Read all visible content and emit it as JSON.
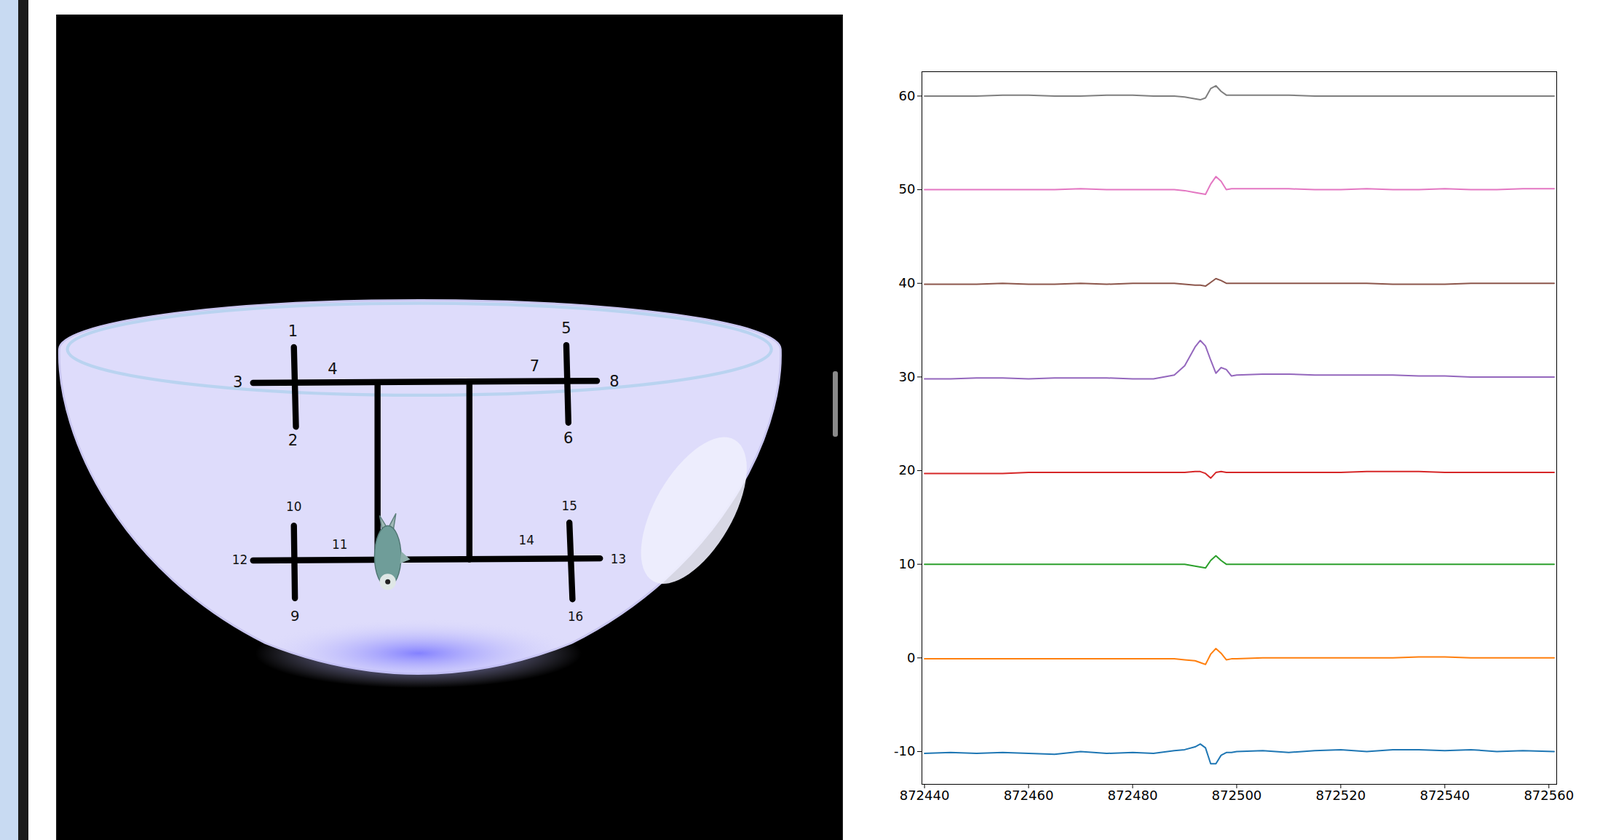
{
  "diagram": {
    "electrode_labels": [
      "1",
      "2",
      "3",
      "4",
      "5",
      "6",
      "7",
      "8",
      "9",
      "10",
      "11",
      "12",
      "13",
      "14",
      "15",
      "16"
    ]
  },
  "chart_data": {
    "type": "line",
    "grid": false,
    "x": [
      872440,
      872445,
      872450,
      872455,
      872460,
      872465,
      872470,
      872475,
      872480,
      872484,
      872488,
      872490,
      872492,
      872493,
      872494,
      872495,
      872496,
      872497,
      872498,
      872499,
      872500,
      872505,
      872510,
      872515,
      872520,
      872525,
      872530,
      872535,
      872540,
      872545,
      872550,
      872555,
      872561
    ],
    "xlim": [
      872439.5,
      872561.5
    ],
    "xticks": [
      872440,
      872460,
      872480,
      872500,
      872520,
      872540,
      872560
    ],
    "ylim": [
      -13.5,
      62.6
    ],
    "yticks": [
      -10,
      0,
      10,
      20,
      30,
      40,
      50,
      60
    ],
    "series": [
      {
        "color": "#1f77b4",
        "values": [
          -10.2,
          -10.1,
          -10.2,
          -10.1,
          -10.2,
          -10.3,
          -10.0,
          -10.2,
          -10.1,
          -10.2,
          -9.9,
          -9.8,
          -9.5,
          -9.2,
          -9.6,
          -11.3,
          -11.3,
          -10.4,
          -10.1,
          -10.1,
          -10.0,
          -9.9,
          -10.1,
          -9.9,
          -9.8,
          -10.0,
          -9.8,
          -9.8,
          -9.9,
          -9.8,
          -10.0,
          -9.9,
          -10.0
        ]
      },
      {
        "color": "#ff7f0e",
        "values": [
          -0.1,
          -0.1,
          -0.1,
          -0.1,
          -0.1,
          -0.1,
          -0.1,
          -0.1,
          -0.1,
          -0.1,
          -0.1,
          -0.2,
          -0.3,
          -0.5,
          -0.7,
          0.4,
          1.0,
          0.5,
          -0.2,
          -0.1,
          -0.1,
          0.0,
          0.0,
          0.0,
          0.0,
          0.0,
          0.0,
          0.1,
          0.1,
          0.0,
          0.0,
          0.0,
          0.0
        ]
      },
      {
        "color": "#2ca02c",
        "values": [
          10.0,
          10.0,
          10.0,
          10.0,
          10.0,
          10.0,
          10.0,
          10.0,
          10.0,
          10.0,
          10.0,
          10.0,
          9.8,
          9.7,
          9.6,
          10.4,
          10.9,
          10.4,
          10.0,
          10.0,
          10.0,
          10.0,
          10.0,
          10.0,
          10.0,
          10.0,
          10.0,
          10.0,
          10.0,
          10.0,
          10.0,
          10.0,
          10.0
        ]
      },
      {
        "color": "#d62728",
        "values": [
          19.7,
          19.7,
          19.7,
          19.7,
          19.8,
          19.8,
          19.8,
          19.8,
          19.8,
          19.8,
          19.8,
          19.8,
          19.9,
          19.9,
          19.7,
          19.2,
          19.8,
          19.9,
          19.8,
          19.8,
          19.8,
          19.8,
          19.8,
          19.8,
          19.8,
          19.9,
          19.9,
          19.9,
          19.8,
          19.8,
          19.8,
          19.8,
          19.8
        ]
      },
      {
        "color": "#9467bd",
        "values": [
          29.8,
          29.8,
          29.9,
          29.9,
          29.8,
          29.9,
          29.9,
          29.9,
          29.8,
          29.8,
          30.2,
          31.2,
          33.2,
          33.9,
          33.3,
          31.8,
          30.4,
          31.0,
          30.8,
          30.1,
          30.2,
          30.3,
          30.3,
          30.2,
          30.2,
          30.2,
          30.2,
          30.1,
          30.1,
          30.0,
          30.0,
          30.0,
          30.0
        ]
      },
      {
        "color": "#8c564b",
        "values": [
          39.9,
          39.9,
          39.9,
          40.0,
          39.9,
          39.9,
          40.0,
          39.9,
          40.0,
          40.0,
          40.0,
          39.9,
          39.8,
          39.8,
          39.7,
          40.1,
          40.5,
          40.3,
          40.0,
          40.0,
          40.0,
          40.0,
          40.0,
          40.0,
          40.0,
          40.0,
          39.9,
          39.9,
          39.9,
          40.0,
          40.0,
          40.0,
          40.0
        ]
      },
      {
        "color": "#e377c2",
        "values": [
          50.0,
          50.0,
          50.0,
          50.0,
          50.0,
          50.0,
          50.1,
          50.0,
          50.0,
          50.0,
          50.0,
          49.9,
          49.7,
          49.6,
          49.5,
          50.6,
          51.4,
          50.9,
          50.0,
          50.1,
          50.1,
          50.1,
          50.1,
          50.0,
          50.0,
          50.1,
          50.0,
          50.0,
          50.1,
          50.0,
          50.0,
          50.1,
          50.1
        ]
      },
      {
        "color": "#7f7f7f",
        "values": [
          60.0,
          60.0,
          60.0,
          60.1,
          60.1,
          60.0,
          60.0,
          60.1,
          60.1,
          60.0,
          60.0,
          59.9,
          59.7,
          59.6,
          59.8,
          60.8,
          61.1,
          60.5,
          60.1,
          60.1,
          60.1,
          60.1,
          60.1,
          60.0,
          60.0,
          60.0,
          60.0,
          60.0,
          60.0,
          60.0,
          60.0,
          60.0,
          60.0
        ]
      }
    ]
  }
}
